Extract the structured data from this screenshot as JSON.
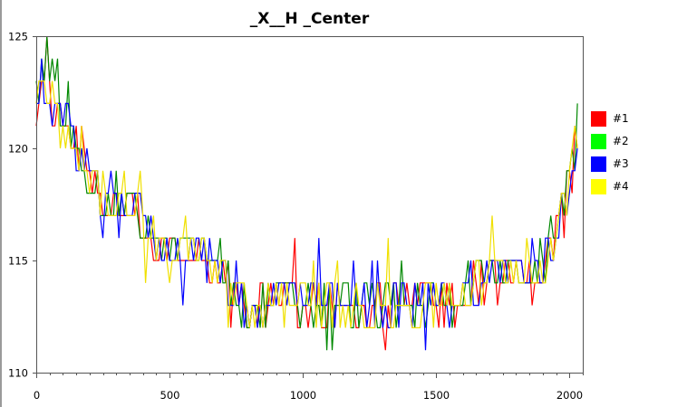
{
  "chart_data": {
    "type": "line",
    "title": "_X__H _Center",
    "xlabel": "",
    "ylabel": "",
    "xlim": [
      0,
      2050
    ],
    "ylim": [
      110,
      125
    ],
    "x_ticks": [
      0,
      500,
      1000,
      1500,
      2000
    ],
    "y_ticks": [
      110,
      115,
      120,
      125
    ],
    "x_minor_step": 50,
    "grid": false,
    "legend_position": "right",
    "series": [
      {
        "name": "#1",
        "color": "#ff0000"
      },
      {
        "name": "#2",
        "color": "#00ff00"
      },
      {
        "name": "#3",
        "color": "#0000ff"
      },
      {
        "name": "#4",
        "color": "#ffff00"
      }
    ],
    "series_stroke_colors": [
      "#ff0000",
      "#008800",
      "#0000ff",
      "#f0e000"
    ],
    "x_step": 10,
    "approx_trend": [
      {
        "x": 0,
        "y": 122.5
      },
      {
        "x": 60,
        "y": 122
      },
      {
        "x": 150,
        "y": 120.5
      },
      {
        "x": 250,
        "y": 117.5
      },
      {
        "x": 380,
        "y": 117.5
      },
      {
        "x": 460,
        "y": 115.5
      },
      {
        "x": 600,
        "y": 115.5
      },
      {
        "x": 700,
        "y": 114.5
      },
      {
        "x": 800,
        "y": 112.5
      },
      {
        "x": 900,
        "y": 113.5
      },
      {
        "x": 1100,
        "y": 113
      },
      {
        "x": 1400,
        "y": 113
      },
      {
        "x": 1600,
        "y": 113.5
      },
      {
        "x": 1700,
        "y": 114.5
      },
      {
        "x": 1900,
        "y": 114.5
      },
      {
        "x": 1950,
        "y": 116.5
      },
      {
        "x": 2000,
        "y": 118.5
      },
      {
        "x": 2030,
        "y": 120.5
      }
    ]
  }
}
